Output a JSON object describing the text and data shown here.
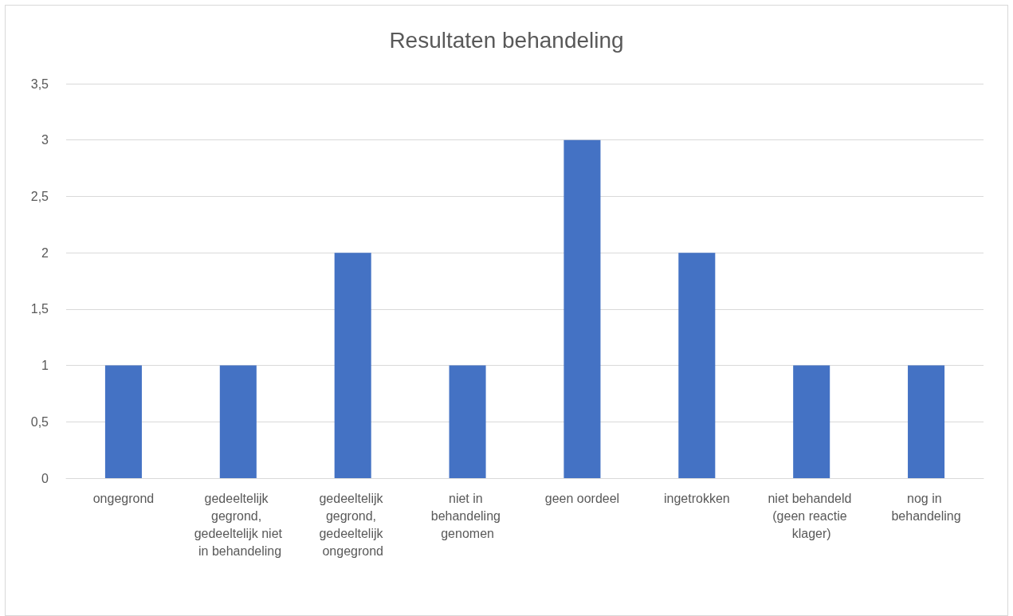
{
  "chart_data": {
    "type": "bar",
    "title": "Resultaten behandeling",
    "categories": [
      "ongegrond",
      "gedeeltelijk gegrond, gedeeltelijk niet in behandeling",
      "gedeeltelijk gegrond, gedeeltelijk ongegrond",
      "niet in behandeling genomen",
      "geen oordeel",
      "ingetrokken",
      "niet behandeld (geen reactie klager)",
      "nog in behandeling"
    ],
    "values": [
      1,
      1,
      2,
      1,
      3,
      2,
      1,
      1
    ],
    "color": "#4472c4",
    "ylim": [
      0,
      3.5
    ],
    "yticks": [
      0,
      {
        "value": 0.5,
        "label": "0,5"
      },
      1,
      {
        "value": 1.5,
        "label": "1,5"
      },
      2,
      {
        "value": 2.5,
        "label": "2,5"
      },
      3,
      {
        "value": 3.5,
        "label": "3,5"
      }
    ],
    "grid": "y"
  }
}
